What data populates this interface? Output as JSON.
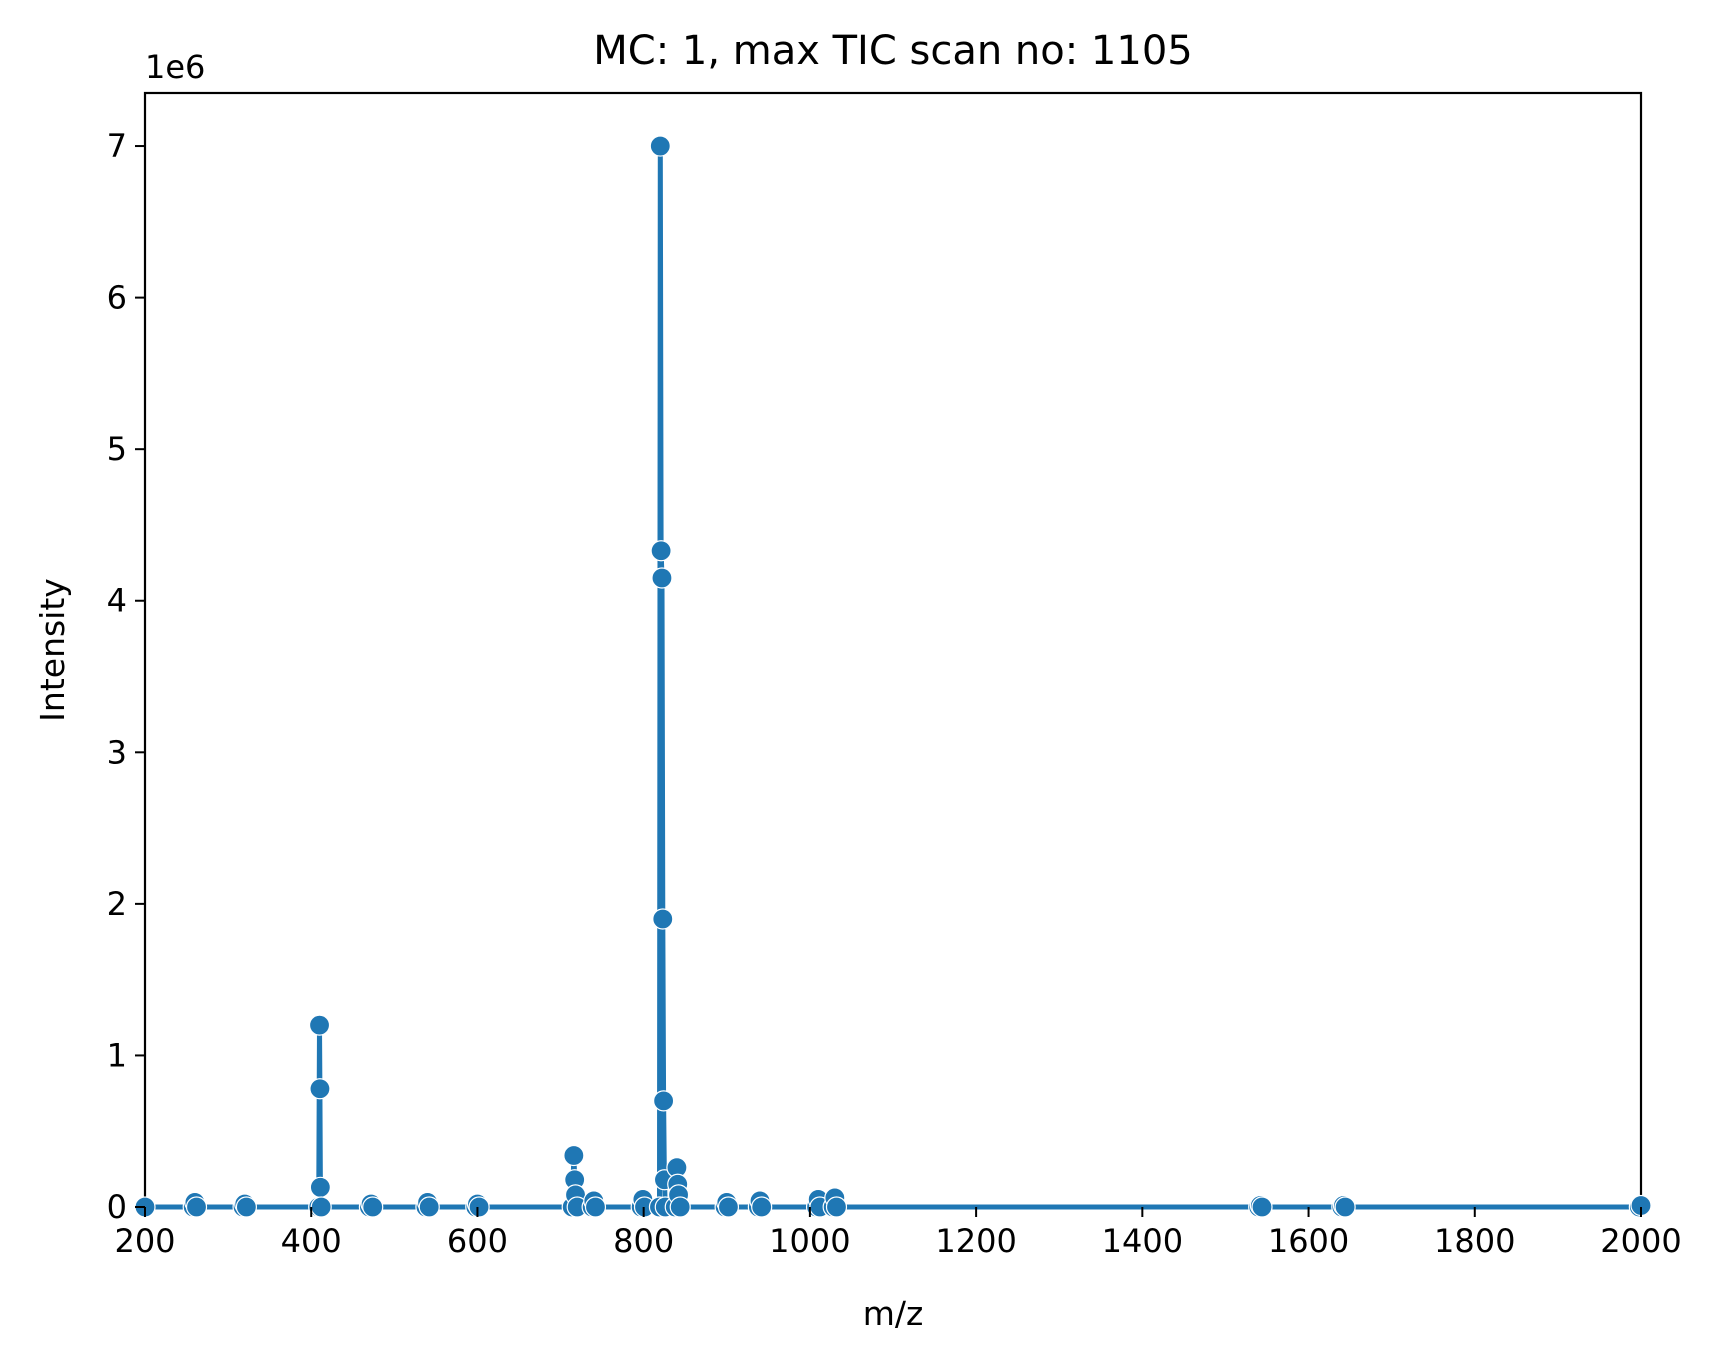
{
  "chart_data": {
    "type": "line",
    "title": "MC: 1, max TIC scan no: 1105",
    "xlabel": "m/z",
    "ylabel": "Intensity",
    "y_scale_label": "1e6",
    "xlim": [
      200,
      2000
    ],
    "ylim": [
      0,
      7.35
    ],
    "x_ticks": [
      200,
      400,
      600,
      800,
      1000,
      1200,
      1400,
      1600,
      1800,
      2000
    ],
    "y_ticks": [
      0,
      1,
      2,
      3,
      4,
      5,
      6,
      7
    ],
    "grid": false,
    "line_color": "#1f77b4",
    "series": [
      {
        "name": "spectrum",
        "points": [
          [
            200,
            0.0
          ],
          [
            258,
            0.0
          ],
          [
            260,
            0.03
          ],
          [
            262,
            0.0
          ],
          [
            318,
            0.0
          ],
          [
            320,
            0.02
          ],
          [
            322,
            0.0
          ],
          [
            409,
            0.0
          ],
          [
            410,
            1.2
          ],
          [
            410.5,
            0.78
          ],
          [
            411,
            0.13
          ],
          [
            412,
            0.0
          ],
          [
            470,
            0.0
          ],
          [
            472,
            0.02
          ],
          [
            474,
            0.0
          ],
          [
            538,
            0.0
          ],
          [
            540,
            0.03
          ],
          [
            542,
            0.0
          ],
          [
            598,
            0.0
          ],
          [
            600,
            0.02
          ],
          [
            602,
            0.0
          ],
          [
            714,
            0.0
          ],
          [
            716,
            0.34
          ],
          [
            717,
            0.18
          ],
          [
            718,
            0.08
          ],
          [
            720,
            0.0
          ],
          [
            738,
            0.0
          ],
          [
            740,
            0.04
          ],
          [
            742,
            0.0
          ],
          [
            797,
            0.0
          ],
          [
            799,
            0.05
          ],
          [
            801,
            0.0
          ],
          [
            819,
            0.0
          ],
          [
            820,
            7.0
          ],
          [
            821,
            4.33
          ],
          [
            822,
            4.15
          ],
          [
            823,
            1.9
          ],
          [
            824,
            0.7
          ],
          [
            825,
            0.18
          ],
          [
            826,
            0.0
          ],
          [
            838,
            0.0
          ],
          [
            840,
            0.26
          ],
          [
            841,
            0.15
          ],
          [
            842,
            0.08
          ],
          [
            844,
            0.0
          ],
          [
            898,
            0.0
          ],
          [
            900,
            0.03
          ],
          [
            902,
            0.0
          ],
          [
            938,
            0.0
          ],
          [
            940,
            0.04
          ],
          [
            942,
            0.0
          ],
          [
            1008,
            0.0
          ],
          [
            1010,
            0.05
          ],
          [
            1012,
            0.0
          ],
          [
            1028,
            0.0
          ],
          [
            1030,
            0.06
          ],
          [
            1032,
            0.0
          ],
          [
            1540,
            0.0
          ],
          [
            1542,
            0.01
          ],
          [
            1544,
            0.0
          ],
          [
            1640,
            0.0
          ],
          [
            1642,
            0.01
          ],
          [
            1644,
            0.0
          ],
          [
            1998,
            0.0
          ],
          [
            2000,
            0.01
          ]
        ]
      }
    ]
  }
}
